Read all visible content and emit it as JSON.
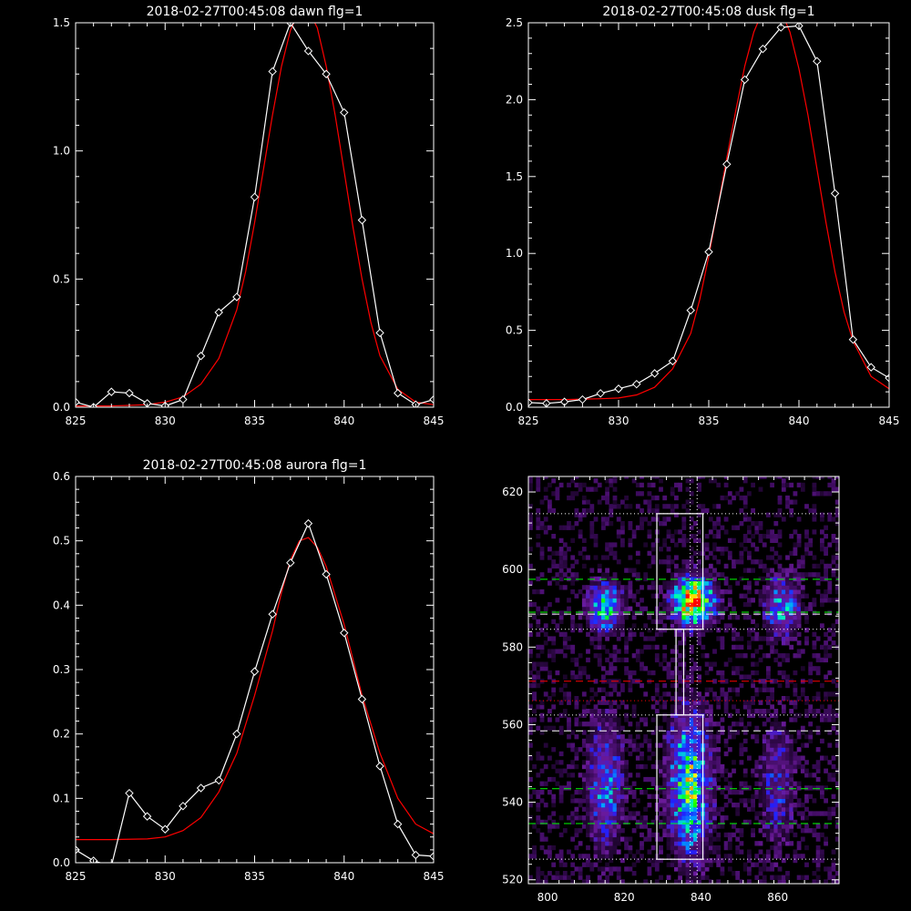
{
  "chart_data": [
    {
      "type": "line",
      "title": "2018-02-27T00:45:08 dawn flg=1",
      "xlim": [
        825,
        845
      ],
      "ylim": [
        0,
        1.5
      ],
      "xticks": [
        825,
        830,
        835,
        840,
        845
      ],
      "yticks": [
        0.0,
        0.5,
        1.0,
        1.5
      ],
      "ytick_labels": [
        "0.0",
        "0.5",
        "1.0",
        "1.5"
      ],
      "series": [
        {
          "color": "#ffffff",
          "marker": "diamond",
          "x": [
            825,
            826,
            827,
            828,
            829,
            830,
            831,
            832,
            833,
            834,
            835,
            836,
            837,
            838,
            839,
            840,
            841,
            842,
            843,
            844,
            845
          ],
          "y": [
            0.02,
            0.0,
            0.06,
            0.055,
            0.015,
            0.005,
            0.03,
            0.2,
            0.37,
            0.43,
            0.82,
            1.31,
            1.5,
            1.39,
            1.3,
            1.15,
            0.73,
            0.29,
            0.055,
            0.01,
            0.03
          ]
        },
        {
          "color": "#ff0000",
          "x": [
            825,
            826,
            827,
            828,
            829,
            830,
            831,
            832,
            833,
            834,
            834.5,
            835,
            835.5,
            836,
            836.5,
            837,
            837.5,
            838,
            838.5,
            839,
            839.5,
            840,
            840.5,
            841,
            841.5,
            842,
            843,
            844,
            845
          ],
          "y": [
            0.005,
            0.005,
            0.005,
            0.007,
            0.01,
            0.02,
            0.04,
            0.09,
            0.19,
            0.38,
            0.53,
            0.72,
            0.93,
            1.14,
            1.33,
            1.47,
            1.55,
            1.55,
            1.48,
            1.33,
            1.14,
            0.92,
            0.7,
            0.5,
            0.33,
            0.2,
            0.07,
            0.02,
            0.01
          ]
        }
      ]
    },
    {
      "type": "line",
      "title": "2018-02-27T00:45:08 dusk flg=1",
      "xlim": [
        825,
        845
      ],
      "ylim": [
        0,
        2.5
      ],
      "xticks": [
        825,
        830,
        835,
        840,
        845
      ],
      "yticks": [
        0.0,
        0.5,
        1.0,
        1.5,
        2.0,
        2.5
      ],
      "ytick_labels": [
        "0.0",
        "0.5",
        "1.0",
        "1.5",
        "2.0",
        "2.5"
      ],
      "series": [
        {
          "color": "#ffffff",
          "marker": "diamond",
          "x": [
            825,
            826,
            827,
            828,
            829,
            830,
            831,
            832,
            833,
            834,
            835,
            836,
            837,
            838,
            839,
            840,
            841,
            842,
            843,
            844,
            845
          ],
          "y": [
            0.03,
            0.025,
            0.035,
            0.05,
            0.09,
            0.12,
            0.15,
            0.22,
            0.3,
            0.63,
            1.01,
            1.58,
            2.13,
            2.33,
            2.47,
            2.48,
            2.25,
            1.39,
            0.44,
            0.26,
            0.19
          ]
        },
        {
          "color": "#ff0000",
          "x": [
            825,
            827,
            829,
            830,
            831,
            832,
            833,
            834,
            834.5,
            835,
            835.5,
            836,
            836.5,
            837,
            837.5,
            838,
            838.5,
            839,
            839.5,
            840,
            840.5,
            841,
            841.5,
            842,
            842.5,
            843,
            844,
            845
          ],
          "y": [
            0.05,
            0.05,
            0.055,
            0.06,
            0.08,
            0.13,
            0.25,
            0.48,
            0.7,
            0.98,
            1.3,
            1.62,
            1.93,
            2.22,
            2.44,
            2.58,
            2.63,
            2.58,
            2.44,
            2.2,
            1.9,
            1.55,
            1.2,
            0.88,
            0.62,
            0.43,
            0.2,
            0.12
          ]
        }
      ]
    },
    {
      "type": "line",
      "title": "2018-02-27T00:45:08 aurora flg=1",
      "xlim": [
        825,
        845
      ],
      "ylim": [
        0,
        0.6
      ],
      "xticks": [
        825,
        830,
        835,
        840,
        845
      ],
      "yticks": [
        0.0,
        0.1,
        0.2,
        0.3,
        0.4,
        0.5,
        0.6
      ],
      "ytick_labels": [
        "0.0",
        "0.1",
        "0.2",
        "0.3",
        "0.4",
        "0.5",
        "0.6"
      ],
      "series": [
        {
          "color": "#ffffff",
          "marker": "diamond",
          "x": [
            825,
            826,
            827,
            828,
            829,
            830,
            831,
            832,
            833,
            834,
            835,
            836,
            837,
            838,
            839,
            840,
            841,
            842,
            843,
            844,
            845
          ],
          "y": [
            0.02,
            0.003,
            -0.005,
            0.108,
            0.072,
            0.052,
            0.088,
            0.116,
            0.128,
            0.2,
            0.297,
            0.386,
            0.466,
            0.527,
            0.448,
            0.357,
            0.254,
            0.15,
            0.06,
            0.012,
            0.01
          ]
        },
        {
          "color": "#ff0000",
          "x": [
            825,
            827,
            829,
            830,
            831,
            832,
            833,
            834,
            835,
            836,
            836.5,
            837,
            837.5,
            838,
            838.5,
            839,
            840,
            841,
            842,
            843,
            844,
            845
          ],
          "y": [
            0.036,
            0.036,
            0.037,
            0.04,
            0.05,
            0.07,
            0.11,
            0.17,
            0.26,
            0.36,
            0.42,
            0.47,
            0.5,
            0.505,
            0.49,
            0.46,
            0.37,
            0.26,
            0.17,
            0.1,
            0.06,
            0.045
          ]
        }
      ]
    },
    {
      "type": "heatmap",
      "xlim": [
        795,
        876
      ],
      "ylim": [
        519,
        624
      ],
      "xticks": [
        800,
        820,
        840,
        860
      ],
      "yticks": [
        520,
        540,
        560,
        580,
        600,
        620
      ],
      "colormap": [
        "#000000",
        "#3a0a5a",
        "#6a1a9a",
        "#2020ff",
        "#00a0ff",
        "#00ffb0",
        "#00ff00",
        "#ffff00",
        "#ff8000",
        "#ff0000"
      ],
      "blobs": [
        {
          "x": 815,
          "y": 590.5,
          "sx": 3,
          "sy": 4,
          "peak": 0.5
        },
        {
          "x": 838,
          "y": 592,
          "sx": 3.5,
          "sy": 4,
          "peak": 0.85
        },
        {
          "x": 861,
          "y": 590.5,
          "sx": 3,
          "sy": 5,
          "peak": 0.35
        },
        {
          "x": 815,
          "y": 545,
          "sx": 3,
          "sy": 11,
          "peak": 0.33
        },
        {
          "x": 837,
          "y": 545,
          "sx": 3.5,
          "sy": 12,
          "peak": 0.55
        },
        {
          "x": 860,
          "y": 545,
          "sx": 3,
          "sy": 11,
          "peak": 0.2
        }
      ],
      "boxes": [
        {
          "x0": 828.5,
          "x1": 840.5,
          "y0": 584.6,
          "y1": 614.4
        },
        {
          "x0": 828.5,
          "x1": 840.5,
          "y0": 525.3,
          "y1": 562.5
        },
        {
          "x0": 833.5,
          "x1": 835.5,
          "y0": 562.5,
          "y1": 584.6
        }
      ],
      "hlines": [
        {
          "y": 597.5,
          "color": "#00ff00",
          "style": "dashed"
        },
        {
          "y": 589.0,
          "color": "#00ff00",
          "style": "dashed"
        },
        {
          "y": 588.5,
          "color": "#ffffff",
          "style": "dashed"
        },
        {
          "y": 571.2,
          "color": "#ff0000",
          "style": "dashed"
        },
        {
          "y": 558.4,
          "color": "#ffffff",
          "style": "dashed"
        },
        {
          "y": 543.5,
          "color": "#00ff00",
          "style": "dashed"
        },
        {
          "y": 534.5,
          "color": "#00ff00",
          "style": "dashed"
        },
        {
          "y": 614.4,
          "color": "#ffffff",
          "style": "dotted"
        },
        {
          "y": 584.6,
          "color": "#ffffff",
          "style": "dotted"
        },
        {
          "y": 566.2,
          "color": "#ff0000",
          "style": "dotted"
        },
        {
          "y": 562.5,
          "color": "#ffffff",
          "style": "dotted"
        },
        {
          "y": 525.3,
          "color": "#ffffff",
          "style": "dotted"
        }
      ],
      "vlines": [
        {
          "x": 837.2,
          "color": "#ffffff",
          "style": "dotted"
        },
        {
          "x": 839.0,
          "color": "#ffffff",
          "style": "dotted"
        }
      ]
    }
  ]
}
